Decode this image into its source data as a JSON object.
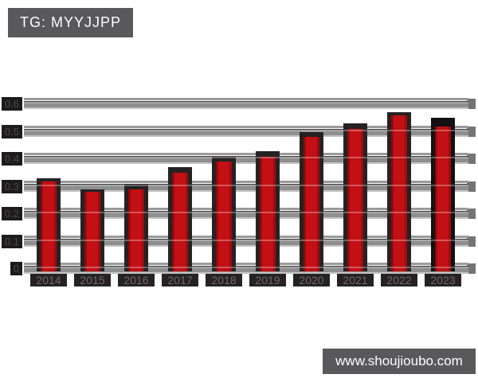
{
  "title_badge": {
    "text": "TG: MYYJJPP"
  },
  "watermark": {
    "text": "www.shoujioubo.com"
  },
  "colors": {
    "badge_bg": "#59585a",
    "badge_text": "#ffffff",
    "bar_red": "#c21014",
    "bar_red_edge": "#8b090b",
    "bar_shadow": "#262223",
    "bar_shadow_2023": "#121013",
    "grid_slab_mid": "#8f8f8f",
    "grid_slab_dark": "#454545",
    "grid_slab_light": "#c4c4c4",
    "grid_thin_line": "#9a9a9a",
    "grid_endcap": "#747474",
    "ylabel_bg": "#1d1b1c",
    "ylabel_text": "#4a4a4a",
    "xlabel_bg": "#262223",
    "xlabel_text": "#6f6a69",
    "background": "#ffffff"
  },
  "chart_data": {
    "type": "bar",
    "title": "TG: MYYJJPP",
    "categories": [
      "2014",
      "2015",
      "2016",
      "2017",
      "2018",
      "2019",
      "2020",
      "2021",
      "2022",
      "2023"
    ],
    "series": [
      {
        "name": "value",
        "color": "#c21014",
        "values": [
          0.32,
          0.28,
          0.29,
          0.35,
          0.39,
          0.41,
          0.48,
          0.51,
          0.56,
          0.52
        ]
      },
      {
        "name": "shadow-backdrop",
        "color": "#262223",
        "values": [
          0.33,
          0.29,
          0.31,
          0.37,
          0.41,
          0.43,
          0.5,
          0.53,
          0.57,
          0.55
        ]
      }
    ],
    "xlabel": "",
    "ylabel": "",
    "yticks": [
      0,
      0.1,
      0.2,
      0.3,
      0.4,
      0.5,
      0.6
    ],
    "ytick_labels": [
      "0",
      "0.1",
      "0.2",
      "0.3",
      "0.4",
      "0.5",
      "0.6"
    ],
    "ylim": [
      0,
      0.62
    ],
    "grid": true,
    "legend": false,
    "bar_style": "3d-shadowed"
  }
}
